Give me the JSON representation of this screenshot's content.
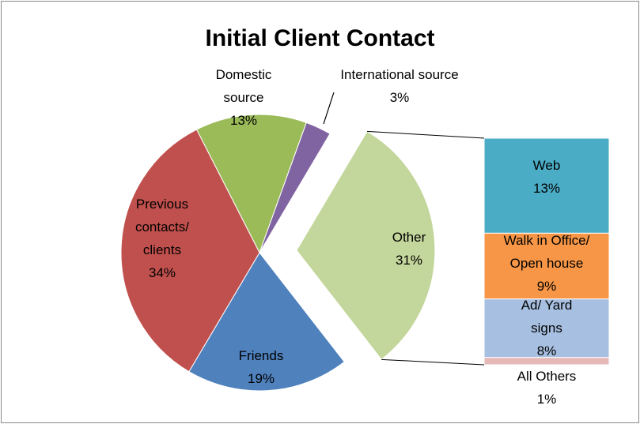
{
  "chart_data": {
    "type": "bar_of_pie",
    "title": "Initial Client Contact",
    "categories": [
      "Domestic source",
      "International source",
      "Other",
      "Friends",
      "Previous contacts/ clients"
    ],
    "values": [
      13,
      3,
      31,
      19,
      34
    ],
    "value_labels": [
      "13%",
      "3%",
      "31%",
      "19%",
      "34%"
    ],
    "colors": [
      "#9bbb59",
      "#8064a2",
      "#c3d69b",
      "#4f81bd",
      "#c0504d"
    ],
    "breakdown": {
      "categories": [
        "Web",
        "Walk in Office/ Open house",
        "Ad/ Yard signs",
        "All Others"
      ],
      "values": [
        13,
        9,
        8,
        1
      ],
      "value_labels": [
        "13%",
        "9%",
        "8%",
        "1%"
      ],
      "colors": [
        "#4bacc6",
        "#f79646",
        "#a7bfe0",
        "#e6b9b8"
      ]
    }
  }
}
